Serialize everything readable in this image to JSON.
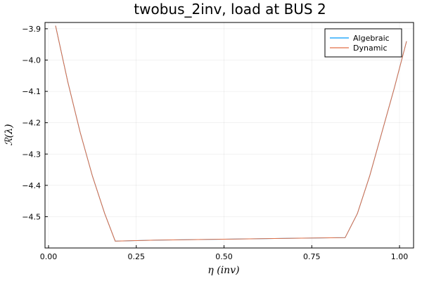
{
  "chart_data": {
    "type": "line",
    "title": "twobus_2inv, load at BUS 2",
    "xlabel": "η (inv)",
    "ylabel": "ℛ(λ)",
    "xlim": [
      -0.01,
      1.04
    ],
    "ylim": [
      -4.6,
      -3.88
    ],
    "xticks": [
      0.0,
      0.25,
      0.5,
      0.75,
      1.0
    ],
    "xtick_labels": [
      "0.00",
      "0.25",
      "0.50",
      "0.75",
      "1.00"
    ],
    "yticks": [
      -3.9,
      -4.0,
      -4.1,
      -4.2,
      -4.3,
      -4.4,
      -4.5
    ],
    "ytick_labels": [
      "−3.9",
      "−4.0",
      "−4.1",
      "−4.2",
      "−4.3",
      "−4.4",
      "−4.5"
    ],
    "grid": true,
    "legend_position": "top-right",
    "series": [
      {
        "name": "Algebraic",
        "color": "#009af9",
        "x": [
          0.02,
          0.055,
          0.09,
          0.125,
          0.16,
          0.19,
          0.3,
          0.5,
          0.7,
          0.845,
          0.88,
          0.915,
          0.95,
          0.985,
          1.02
        ],
        "y": [
          -3.89,
          -4.07,
          -4.23,
          -4.37,
          -4.49,
          -4.578,
          -4.575,
          -4.572,
          -4.569,
          -4.567,
          -4.49,
          -4.37,
          -4.23,
          -4.09,
          -3.94
        ]
      },
      {
        "name": "Dynamic",
        "color": "#e26f46",
        "x": [
          0.02,
          0.055,
          0.09,
          0.125,
          0.16,
          0.19,
          0.3,
          0.5,
          0.7,
          0.845,
          0.88,
          0.915,
          0.95,
          0.985,
          1.02
        ],
        "y": [
          -3.89,
          -4.07,
          -4.23,
          -4.37,
          -4.49,
          -4.578,
          -4.575,
          -4.572,
          -4.569,
          -4.567,
          -4.49,
          -4.37,
          -4.23,
          -4.09,
          -3.94
        ]
      }
    ]
  }
}
